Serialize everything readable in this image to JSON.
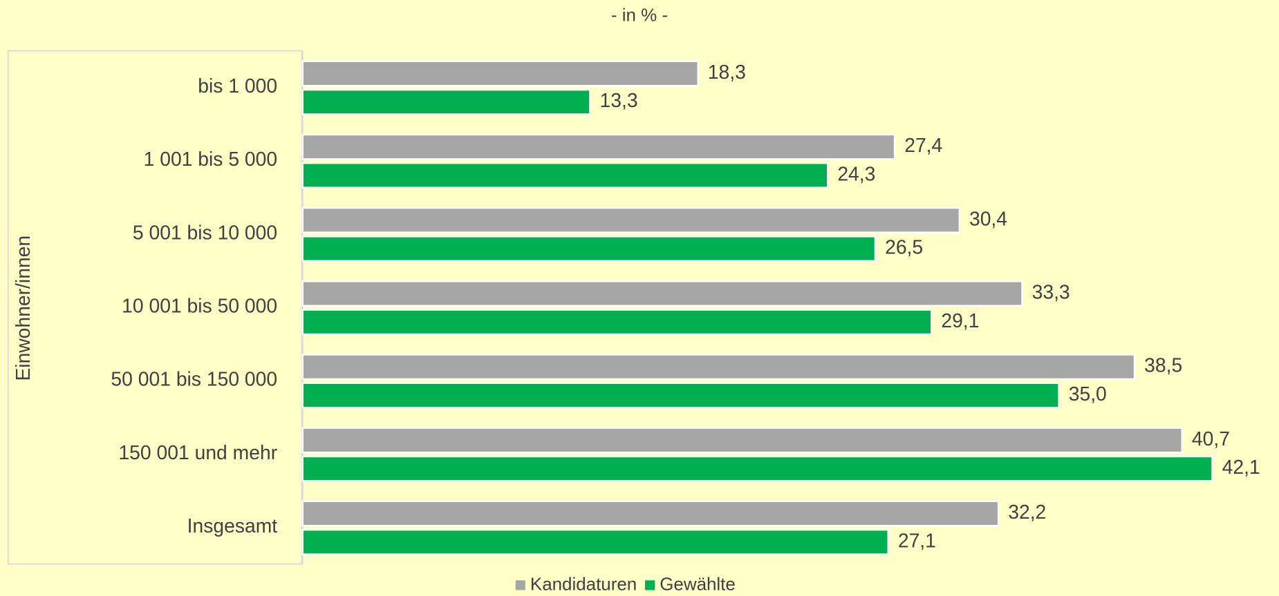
{
  "chart_data": {
    "type": "hbar",
    "subtitle": "- in % -",
    "y_label": "Einwohner/innen",
    "categories": [
      "bis 1 000",
      "1 001 bis 5 000",
      "5 001 bis 10 000",
      "10 001 bis 50 000",
      "50 001 bis 150 000",
      "150 001 und mehr",
      "Insgesamt"
    ],
    "series": [
      {
        "name": "Kandidaturen",
        "color": "#a6a6a6",
        "values": [
          18.3,
          27.4,
          30.4,
          33.3,
          38.5,
          40.7,
          32.2
        ],
        "value_labels": [
          "18,3",
          "27,4",
          "30,4",
          "33,3",
          "38,5",
          "40,7",
          "32,2"
        ]
      },
      {
        "name": "Gewählte",
        "color": "#00b050",
        "values": [
          13.3,
          24.3,
          26.5,
          29.1,
          35.0,
          42.1,
          27.1
        ],
        "value_labels": [
          "13,3",
          "24,3",
          "26,5",
          "29,1",
          "35,0",
          "42,1",
          "27,1"
        ]
      }
    ],
    "xlim": [
      0,
      45
    ],
    "legend": "bottom"
  }
}
